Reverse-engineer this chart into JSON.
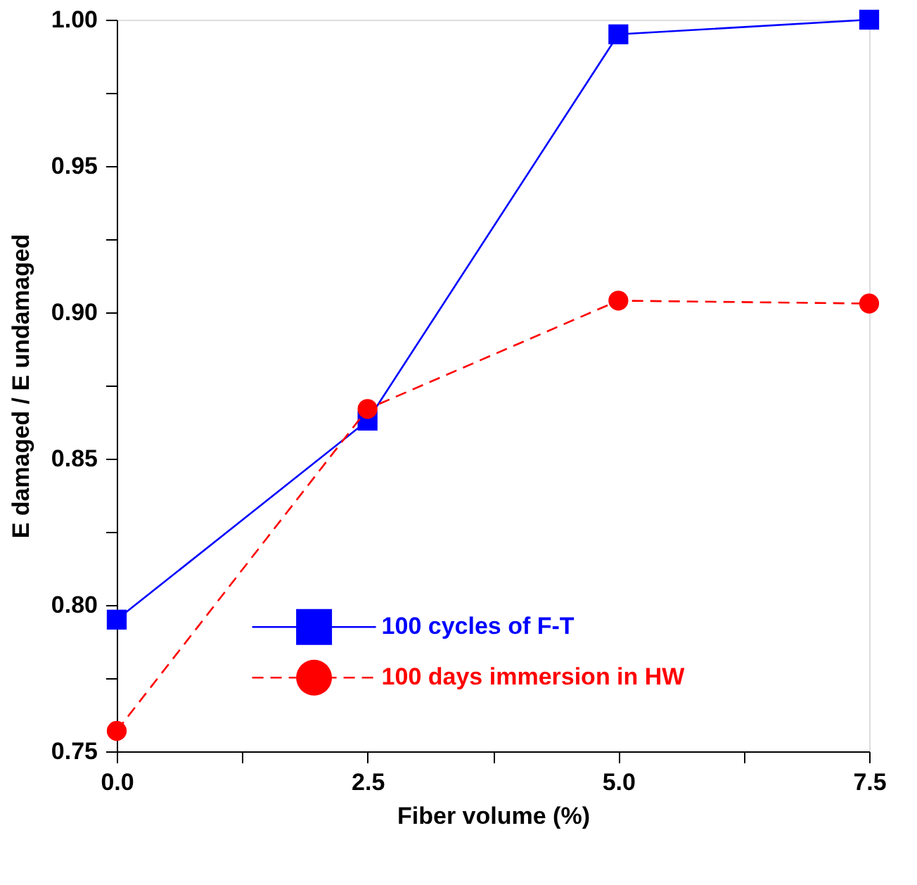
{
  "chart_data": {
    "type": "line",
    "xlabel": "Fiber volume (%)",
    "ylabel": "E damaged  /  E undamaged",
    "x": [
      0,
      2.5,
      5,
      7.5
    ],
    "xlim": [
      0,
      7.5
    ],
    "ylim": [
      0.75,
      1.0
    ],
    "xticks": [
      {
        "value": 0,
        "label": "0.0"
      },
      {
        "value": 1.25,
        "label": null
      },
      {
        "value": 2.5,
        "label": "2.5"
      },
      {
        "value": 3.75,
        "label": null
      },
      {
        "value": 5,
        "label": "5.0"
      },
      {
        "value": 6.25,
        "label": null
      },
      {
        "value": 7.5,
        "label": "7.5"
      }
    ],
    "yticks": [
      {
        "value": 0.75,
        "label": "0.75"
      },
      {
        "value": 0.775,
        "label": null
      },
      {
        "value": 0.8,
        "label": "0.80"
      },
      {
        "value": 0.825,
        "label": null
      },
      {
        "value": 0.85,
        "label": "0.85"
      },
      {
        "value": 0.875,
        "label": null
      },
      {
        "value": 0.9,
        "label": "0.90"
      },
      {
        "value": 0.925,
        "label": null
      },
      {
        "value": 0.95,
        "label": "0.95"
      },
      {
        "value": 0.975,
        "label": null
      },
      {
        "value": 1.0,
        "label": "1.00"
      }
    ],
    "grid": false,
    "legend": "bottom",
    "series": [
      {
        "name": "100 cycles of F-T",
        "color": "#0000ff",
        "marker": "square",
        "line_style": "solid",
        "values": [
          0.795,
          0.863,
          0.995,
          1.0
        ]
      },
      {
        "name": "100 days immersion in HW",
        "color": "#ff0000",
        "marker": "circle",
        "line_style": "dashed",
        "values": [
          0.757,
          0.867,
          0.904,
          0.903
        ]
      }
    ]
  }
}
